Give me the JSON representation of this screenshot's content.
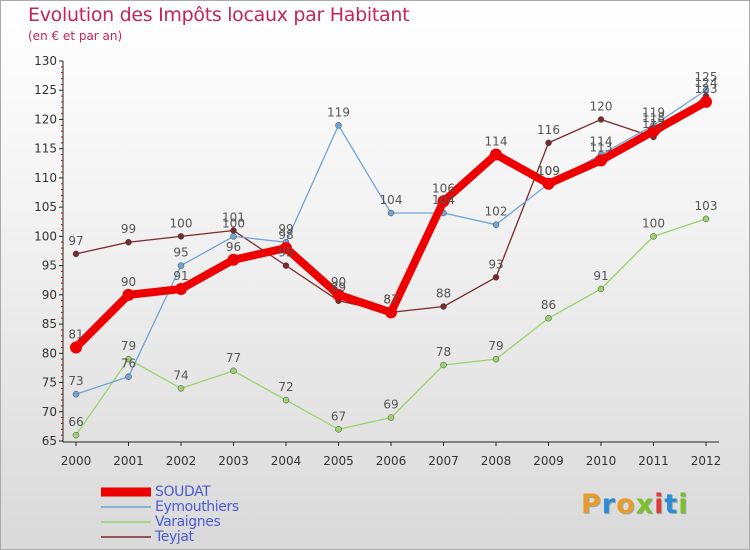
{
  "header": {
    "title": "Evolution des Impôts locaux par Habitant",
    "subtitle": "(en € et par an)"
  },
  "colors": {
    "title": "#c3245a",
    "legend_text": "#4d5bd1",
    "axis": "#222222",
    "ylabel": "#333333",
    "datalabel": "#555555"
  },
  "brand": {
    "letters": [
      "P",
      "r",
      "o",
      "x",
      "i",
      "t",
      "i"
    ],
    "colors": [
      "#e89a2a",
      "#2f8ad6",
      "#e89a2a",
      "#7bbf2b",
      "#e03a3a",
      "#2f8ad6",
      "#7bbf2b"
    ]
  },
  "chart_data": {
    "type": "line",
    "title": "Evolution des Impôts locaux par Habitant",
    "subtitle": "(en € et par an)",
    "xlabel": "",
    "ylabel": "",
    "x": [
      "2000",
      "2001",
      "2002",
      "2003",
      "2004",
      "2005",
      "2006",
      "2007",
      "2008",
      "2009",
      "2010",
      "2011",
      "2012"
    ],
    "ylim": [
      65,
      130
    ],
    "yticks": [
      65,
      70,
      75,
      80,
      85,
      90,
      95,
      100,
      105,
      110,
      115,
      120,
      125,
      130
    ],
    "grid": false,
    "series": [
      {
        "name": "Teyjat",
        "color": "#7a2a2a",
        "values": [
          97,
          99,
          100,
          101,
          95,
          89,
          87,
          88,
          93,
          116,
          120,
          117,
          124
        ],
        "labels": [
          "97",
          "99",
          "100",
          "101",
          "95",
          "89",
          "87",
          "88",
          "93",
          "116",
          "120",
          "117",
          "124"
        ]
      },
      {
        "name": "Varaignes",
        "color": "#9ad36c",
        "values": [
          66,
          79,
          74,
          77,
          72,
          67,
          69,
          78,
          79,
          86,
          91,
          100,
          103
        ],
        "labels": [
          "66",
          "79",
          "74",
          "77",
          "72",
          "67",
          "69",
          "78",
          "79",
          "86",
          "91",
          "100",
          "103"
        ]
      },
      {
        "name": "Eymouthiers",
        "color": "#6ea4d6",
        "values": [
          73,
          76,
          95,
          100,
          99,
          119,
          104,
          104,
          102,
          109,
          114,
          119,
          125
        ],
        "labels": [
          "73",
          "76",
          "95",
          "100",
          "99",
          "119",
          "104",
          "104",
          "102",
          "109",
          "114",
          "119",
          "125"
        ]
      },
      {
        "name": "SOUDAT",
        "color": "#ee0000",
        "values": [
          81,
          90,
          91,
          96,
          98,
          90,
          87,
          106,
          114,
          109,
          113,
          118,
          123
        ],
        "labels": [
          "81",
          "90",
          "91",
          "96",
          "98",
          "90",
          "87",
          "106",
          "114",
          "109",
          "113",
          "118",
          "123"
        ]
      }
    ],
    "legend": {
      "position": "bottom-left",
      "entries": [
        "SOUDAT",
        "Eymouthiers",
        "Varaignes",
        "Teyjat"
      ]
    }
  }
}
